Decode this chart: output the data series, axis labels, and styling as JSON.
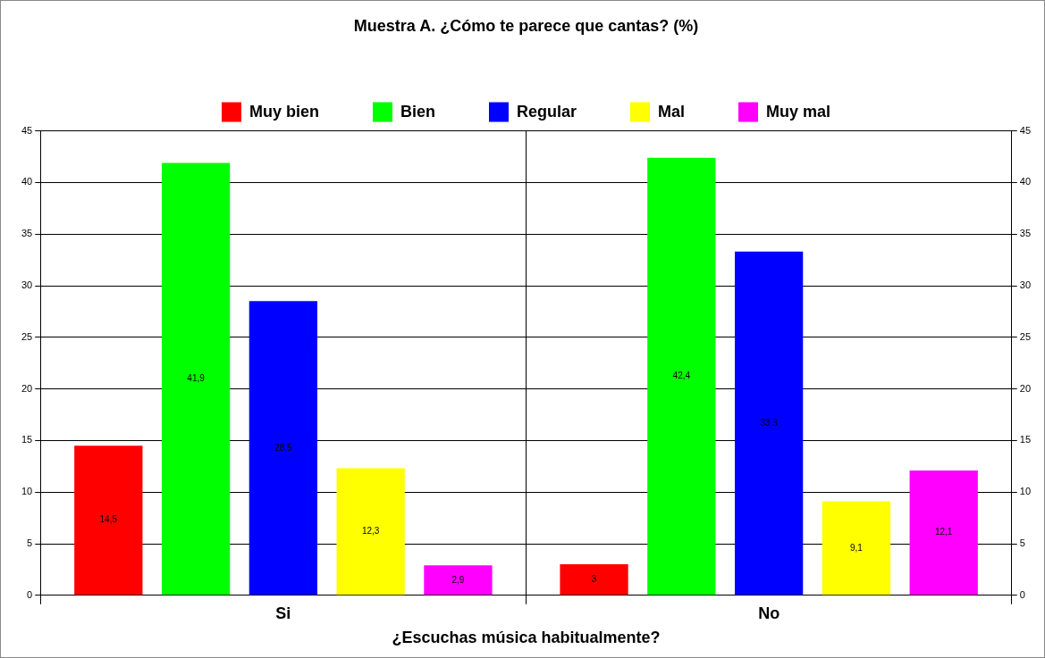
{
  "chart_data": {
    "type": "bar",
    "title": "Muestra A. ¿Cómo te parece que cantas? (%)",
    "xlabel": "¿Escuchas música habitualmente?",
    "categories": [
      "Si",
      "No"
    ],
    "series": [
      {
        "name": "Muy bien",
        "color": "#ff0000",
        "values": [
          14.5,
          3
        ],
        "value_labels": [
          "14,5",
          "3"
        ]
      },
      {
        "name": "Bien",
        "color": "#00ff00",
        "values": [
          41.9,
          42.4
        ],
        "value_labels": [
          "41,9",
          "42,4"
        ]
      },
      {
        "name": "Regular",
        "color": "#0000ff",
        "values": [
          28.5,
          33.3
        ],
        "value_labels": [
          "28,5",
          "33,3"
        ]
      },
      {
        "name": "Mal",
        "color": "#ffff00",
        "values": [
          12.3,
          9.1
        ],
        "value_labels": [
          "12,3",
          "9,1"
        ]
      },
      {
        "name": "Muy mal",
        "color": "#ff00ff",
        "values": [
          2.9,
          12.1
        ],
        "value_labels": [
          "2,9",
          "12,1"
        ]
      }
    ],
    "ylim": [
      0,
      45
    ],
    "yticks": [
      0,
      5,
      10,
      15,
      20,
      25,
      30,
      35,
      40,
      45
    ],
    "y2lim": [
      0,
      45
    ],
    "y2ticks": [
      0,
      5,
      10,
      15,
      20,
      25,
      30,
      35,
      40,
      45
    ],
    "grid": true,
    "legend": "top"
  }
}
